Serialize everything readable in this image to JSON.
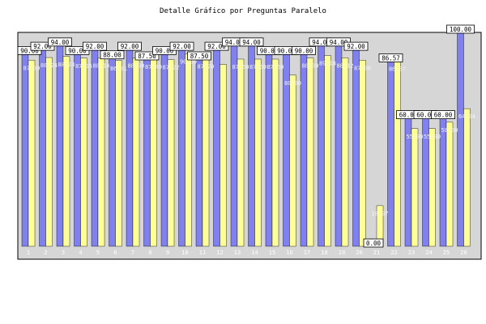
{
  "chart_data": {
    "type": "bar",
    "title": "Detalle Gráfico por Preguntas Paralelo",
    "xlabel": "",
    "ylabel": "",
    "ylim": [
      0,
      100
    ],
    "yticks": [
      25,
      50,
      75,
      100
    ],
    "grid": false,
    "legend": "none",
    "categories": [
      "1",
      "2",
      "3",
      "4",
      "5",
      "6",
      "7",
      "8",
      "9",
      "10",
      "11",
      "12",
      "13",
      "14",
      "15",
      "16",
      "17",
      "18",
      "19",
      "20",
      "21",
      "22",
      "23",
      "24",
      "25",
      "26"
    ],
    "series": [
      {
        "color": "#8080ee",
        "values": [
          90.0,
          92.0,
          94.0,
          90.0,
          92.0,
          88.0,
          92.0,
          87.5,
          90.0,
          92.0,
          87.5,
          92.0,
          94.0,
          94.0,
          90.0,
          90.0,
          90.0,
          94.0,
          94.0,
          92.0,
          0.0,
          86.57,
          60.0,
          60.0,
          60.0,
          100.0
        ],
        "labels": [
          "90.00",
          "92.00",
          "94.00",
          "90.00",
          "92.00",
          "88.00",
          "92.00",
          "87.50",
          "90.00",
          "92.00",
          "87.50",
          "92.00",
          "94.00",
          "94.00",
          "90.00",
          "90.00",
          "90.00",
          "94.00",
          "94.00",
          "92.00",
          "0.00",
          "86.57",
          "60.00",
          "60.00",
          "60.00",
          "100.00"
        ]
      },
      {
        "color": "#ffff99",
        "values": [
          87.0,
          88.24,
          88.73,
          87.95,
          88.14,
          86.81,
          88.0,
          87.49,
          87.22,
          90.0,
          87.7,
          85.0,
          87.5,
          87.5,
          87.5,
          80.0,
          88.0,
          89.18,
          88.12,
          87.0,
          18.97,
          86.57,
          55.0,
          55.0,
          58.0,
          64.34
        ],
        "labels": [
          "87.00",
          "88.24",
          "88.73",
          "87.95",
          "88.14",
          "86.81",
          "88.00",
          "87.49",
          "87.22",
          "90.00",
          "87.70",
          "",
          "87.50",
          "87.50",
          "87.50",
          "80.00",
          "88.00",
          "89.18",
          "88.12",
          "87.00",
          "18.97",
          "86.57",
          "55.00",
          "55.00",
          "58.00",
          "64.34"
        ]
      }
    ],
    "colors": {
      "plot_bg": "#d6d6d6",
      "frame": "#000000",
      "label_box": "#ffffff"
    }
  }
}
